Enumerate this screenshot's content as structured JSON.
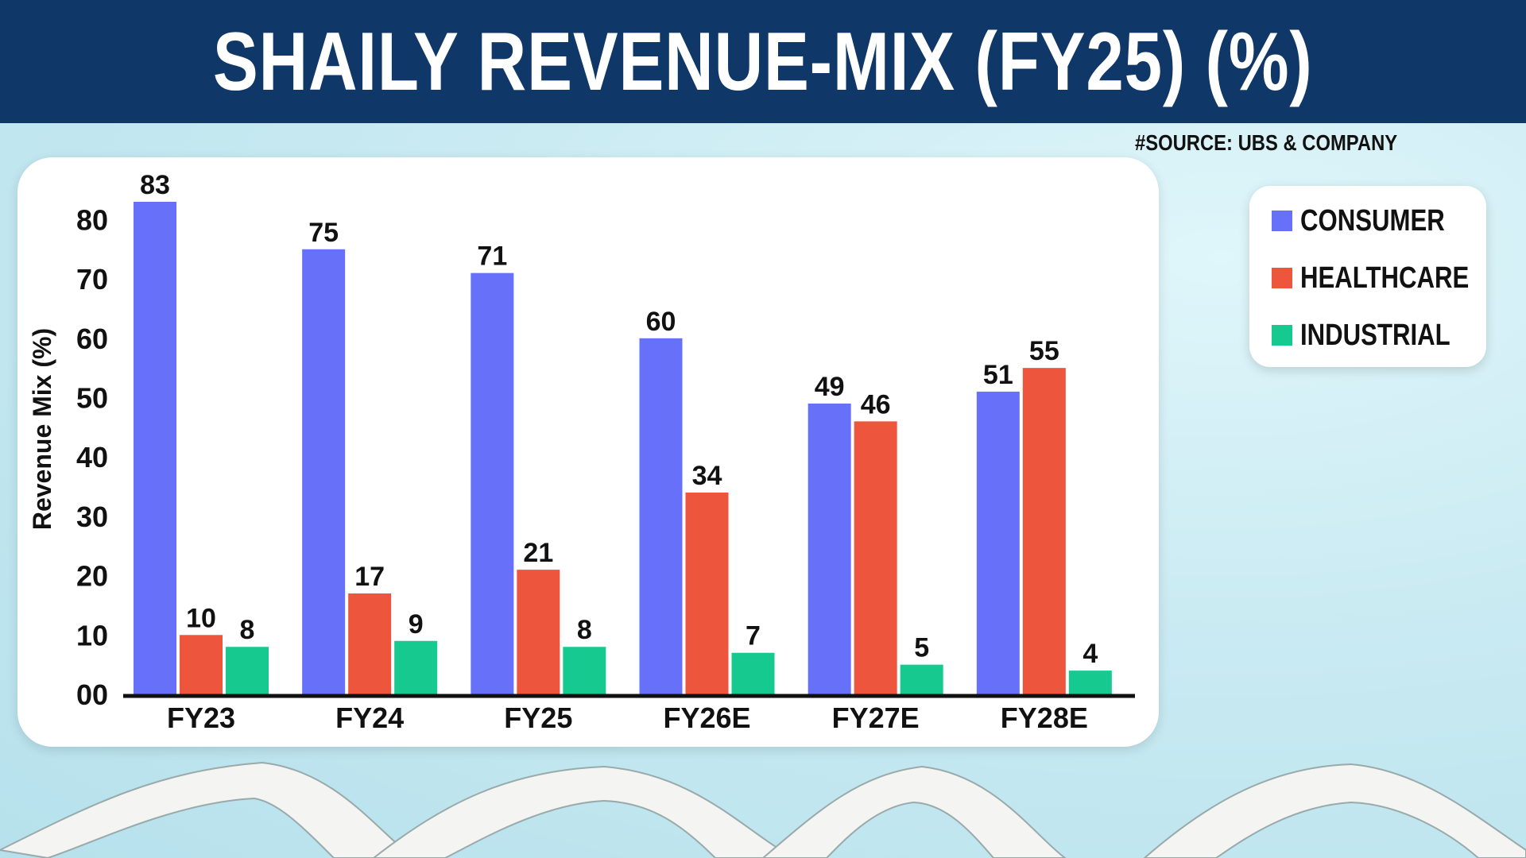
{
  "title": "SHAILY REVENUE-MIX (FY25) (%)",
  "source": "#SOURCE: UBS & COMPANY",
  "colors": {
    "header_bg": "#0f3767",
    "consumer": "#6670f8",
    "healthcare": "#ee553d",
    "industrial": "#15c98f"
  },
  "legend": [
    {
      "label": "CONSUMER",
      "color": "#6670f8"
    },
    {
      "label": "HEALTHCARE",
      "color": "#ee553d"
    },
    {
      "label": "INDUSTRIAL",
      "color": "#15c98f"
    }
  ],
  "chart_data": {
    "type": "bar",
    "title": "SHAILY REVENUE-MIX (FY25) (%)",
    "xlabel": "",
    "ylabel": "Revenue Mix (%)",
    "ylim": [
      0,
      83
    ],
    "yticks": [
      "00",
      "10",
      "20",
      "30",
      "40",
      "50",
      "60",
      "70",
      "80"
    ],
    "categories": [
      "FY23",
      "FY24",
      "FY25",
      "FY26E",
      "FY27E",
      "FY28E"
    ],
    "series": [
      {
        "name": "CONSUMER",
        "color": "#6670f8",
        "values": [
          83,
          75,
          71,
          60,
          49,
          51
        ]
      },
      {
        "name": "HEALTHCARE",
        "color": "#ee553d",
        "values": [
          10,
          17,
          21,
          34,
          46,
          55
        ]
      },
      {
        "name": "INDUSTRIAL",
        "color": "#15c98f",
        "values": [
          8,
          9,
          8,
          7,
          5,
          4
        ]
      }
    ],
    "grid": false,
    "legend_position": "right"
  }
}
